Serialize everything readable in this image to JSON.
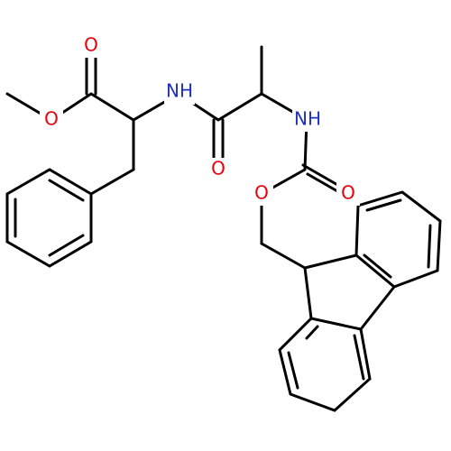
{
  "atom_labels": [
    "O",
    "O",
    "NH",
    "O",
    "NH",
    "O",
    "O"
  ]
}
